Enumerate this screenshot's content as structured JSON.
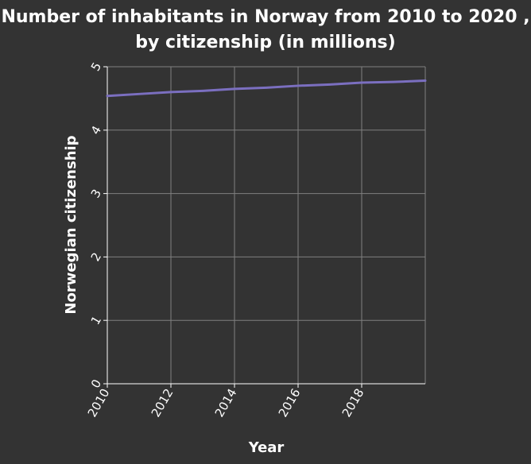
{
  "chart_data": {
    "type": "line",
    "title": "Number of inhabitants in Norway from 2010 to 2020 , by citizenship (in millions)",
    "xlabel": "Year",
    "ylabel": "Norwegian citizenship",
    "xlim": [
      2010,
      2020
    ],
    "ylim": [
      0,
      5
    ],
    "x_ticks": [
      "2010",
      "2012",
      "2014",
      "2016",
      "2018"
    ],
    "y_ticks": [
      "0",
      "1",
      "2",
      "3",
      "4",
      "5"
    ],
    "grid": true,
    "series": [
      {
        "x": [
          2010,
          2011,
          2012,
          2013,
          2014,
          2015,
          2016,
          2017,
          2018,
          2019,
          2020
        ],
        "values": [
          4.54,
          4.57,
          4.6,
          4.62,
          4.65,
          4.67,
          4.7,
          4.72,
          4.75,
          4.76,
          4.78
        ]
      }
    ],
    "colors": {
      "background": "#333333",
      "grid": "#808080",
      "line": "#7b6fc0",
      "text": "#ffffff"
    }
  }
}
